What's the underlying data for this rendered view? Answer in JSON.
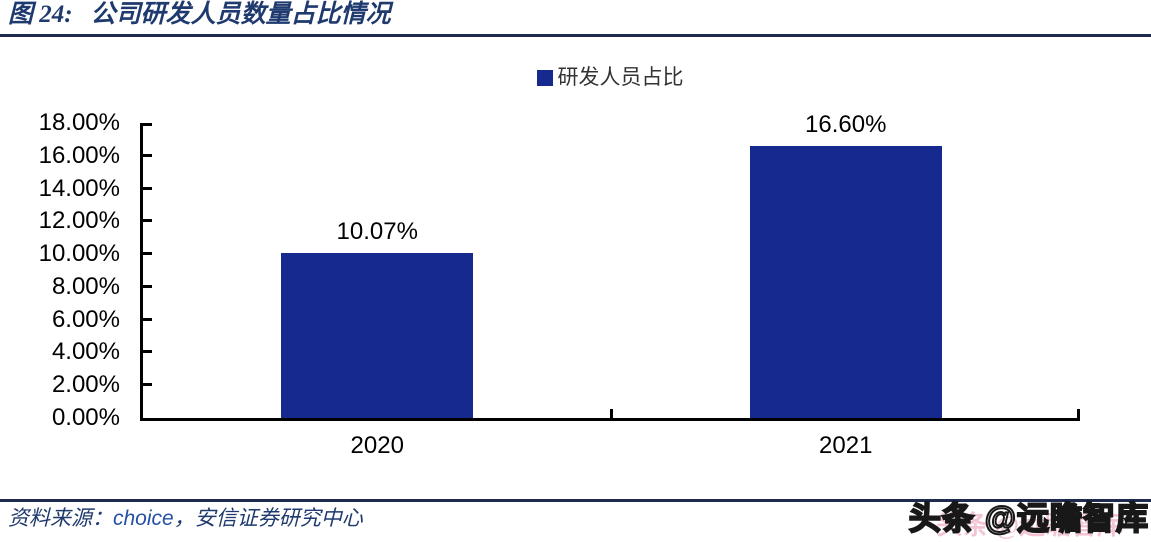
{
  "header": {
    "figure_label": "图 24:",
    "title": "公司研发人员数量占比情况"
  },
  "chart_data": {
    "type": "bar",
    "title": "公司研发人员数量占比情况",
    "categories": [
      "2020",
      "2021"
    ],
    "series": [
      {
        "name": "研发人员占比",
        "values": [
          10.07,
          16.6
        ]
      }
    ],
    "value_labels": [
      "10.07%",
      "16.60%"
    ],
    "xlabel": "",
    "ylabel": "",
    "ylim": [
      0,
      18
    ],
    "ytick_step": 2,
    "ytick_labels": [
      "0.00%",
      "2.00%",
      "4.00%",
      "6.00%",
      "8.00%",
      "10.00%",
      "12.00%",
      "14.00%",
      "16.00%",
      "18.00%"
    ],
    "grid": false,
    "legend_position": "top-center",
    "bar_color": "#15298E"
  },
  "footer": {
    "source_label": "资料来源：",
    "source_name": "choice",
    "separator": "，",
    "source_org": "安信证券研究中心"
  },
  "watermark": {
    "text": "头条 @远瞻智库"
  },
  "colors": {
    "bar": "#15298E",
    "title_navy": "#1F3A6E",
    "rule_navy": "#1E2B4F",
    "axis": "#000000",
    "choice_blue": "#2450A6",
    "watermark_pink": "#E06C8C"
  }
}
